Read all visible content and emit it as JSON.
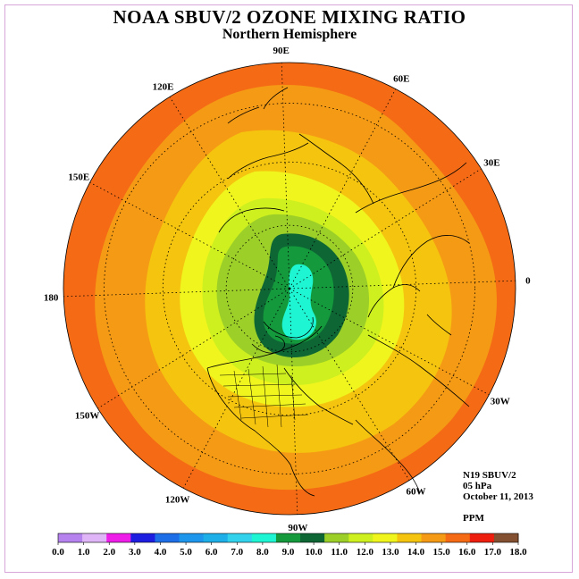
{
  "title": "NOAA SBUV/2 OZONE MIXING RATIO",
  "subtitle": "Northern Hemisphere",
  "info": {
    "satellite": "N19 SBUV/2",
    "level": "05 hPa",
    "date": "October 11, 2013",
    "units": "PPM"
  },
  "longitude_labels": [
    {
      "id": "lon-0",
      "text": "0",
      "lon_deg": 0
    },
    {
      "id": "lon-30e",
      "text": "30E",
      "lon_deg": 30
    },
    {
      "id": "lon-60e",
      "text": "60E",
      "lon_deg": 60
    },
    {
      "id": "lon-90e",
      "text": "90E",
      "lon_deg": 90
    },
    {
      "id": "lon-120e",
      "text": "120E",
      "lon_deg": 120
    },
    {
      "id": "lon-150e",
      "text": "150E",
      "lon_deg": 150
    },
    {
      "id": "lon-180",
      "text": "180",
      "lon_deg": 180
    },
    {
      "id": "lon-150w",
      "text": "150W",
      "lon_deg": -150
    },
    {
      "id": "lon-120w",
      "text": "120W",
      "lon_deg": -120
    },
    {
      "id": "lon-90w",
      "text": "90W",
      "lon_deg": -90
    },
    {
      "id": "lon-60w",
      "text": "60W",
      "lon_deg": -60
    },
    {
      "id": "lon-30w",
      "text": "30W",
      "lon_deg": -30
    }
  ],
  "colorbar": {
    "labels": [
      "0.0",
      "1.0",
      "2.0",
      "3.0",
      "4.0",
      "5.0",
      "6.0",
      "7.0",
      "8.0",
      "9.0",
      "10.0",
      "11.0",
      "12.0",
      "13.0",
      "14.0",
      "15.0",
      "16.0",
      "17.0",
      "18.0"
    ],
    "colors": [
      "#b582ee",
      "#dfb5f7",
      "#ee1ee8",
      "#1e1ee0",
      "#1e6ee8",
      "#1e96ec",
      "#1eaee8",
      "#32d2ec",
      "#1ef5d2",
      "#149a3c",
      "#0d6634",
      "#9ccf28",
      "#cdf01e",
      "#f0f51e",
      "#f5c40f",
      "#f59a14",
      "#f56a14",
      "#ee1e0f",
      "#845032"
    ]
  },
  "field_colors": {
    "outer": "#f56a14",
    "band_15": "#f59a14",
    "band_14": "#f5c40f",
    "band_13": "#f0f51e",
    "band_12": "#cdf01e",
    "band_11": "#9ccf28",
    "band_10": "#0d6634",
    "band_9": "#149a3c",
    "band_8": "#1ef5d2"
  }
}
